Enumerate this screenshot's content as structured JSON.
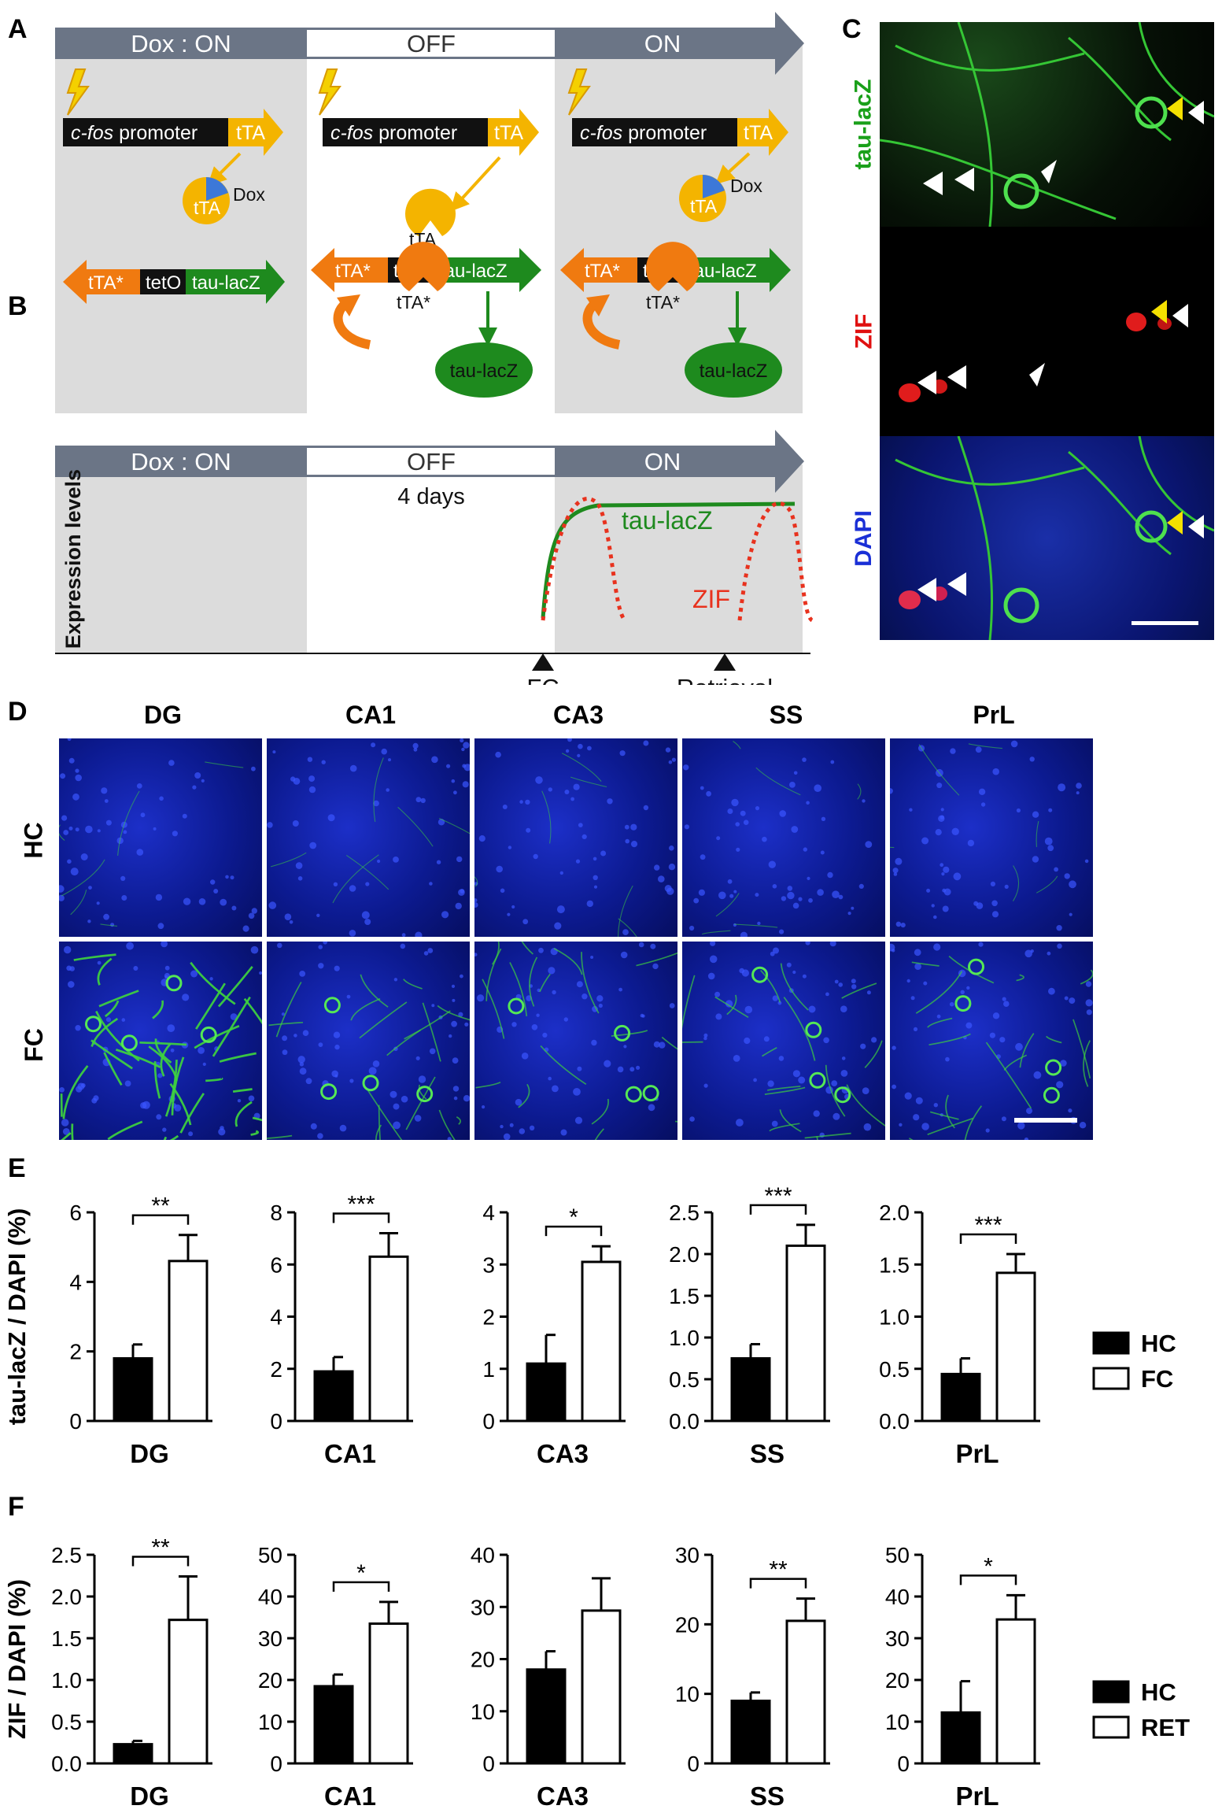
{
  "panel_labels": {
    "a": "A",
    "b": "B",
    "c": "C",
    "d": "D",
    "e": "E",
    "f": "F"
  },
  "panel_a": {
    "phases": [
      "Dox : ON",
      "OFF",
      "ON"
    ],
    "promoter_italic": "c-fos",
    "promoter_rest": " promoter",
    "tta": "tTA",
    "tta_star": "tTA*",
    "teto": "tetO",
    "taulacz": "tau-lacZ",
    "dox": "Dox"
  },
  "panel_b": {
    "phases": [
      "Dox : ON",
      "OFF",
      "ON"
    ],
    "duration": "4 days",
    "ylabel": "Expression levels",
    "curve_taulacz": "tau-lacZ",
    "curve_zif": "ZIF",
    "markers": [
      "FC",
      "Retrieval"
    ]
  },
  "panel_c": {
    "channels": [
      "tau-lacZ",
      "ZIF",
      "DAPI"
    ],
    "channel_colors": [
      "#1aa01a",
      "#e01010",
      "#1a2fd6"
    ]
  },
  "panel_d": {
    "regions": [
      "DG",
      "CA1",
      "CA3",
      "SS",
      "PrL"
    ],
    "rows": [
      "HC",
      "FC"
    ]
  },
  "colors": {
    "hc_bar": "#000000",
    "treated_bar": "#ffffff",
    "green": "#1e8a1e",
    "orange": "#f07a10",
    "yellow": "#f4b400",
    "grey_bg": "#dcdcdc",
    "arrow": "#6b7586",
    "zif_red": "#e8321e"
  },
  "chart_data": [
    {
      "type": "bar",
      "panel": "E",
      "xlabel": "DG",
      "ylabel": "tau-lacZ / DAPI (%)",
      "ylim": [
        0,
        6
      ],
      "yticks": [
        "0",
        "2",
        "4",
        "6"
      ],
      "categories": [
        "HC",
        "FC"
      ],
      "values": [
        1.8,
        4.6
      ],
      "errors": [
        0.4,
        0.75
      ],
      "sig": "**"
    },
    {
      "type": "bar",
      "panel": "E",
      "xlabel": "CA1",
      "ylim": [
        0,
        8
      ],
      "yticks": [
        "0",
        "2",
        "4",
        "6",
        "8"
      ],
      "categories": [
        "HC",
        "FC"
      ],
      "values": [
        1.9,
        6.3
      ],
      "errors": [
        0.55,
        0.9
      ],
      "sig": "***"
    },
    {
      "type": "bar",
      "panel": "E",
      "xlabel": "CA3",
      "ylim": [
        0,
        4
      ],
      "yticks": [
        "0",
        "1",
        "2",
        "3",
        "4"
      ],
      "categories": [
        "HC",
        "FC"
      ],
      "values": [
        1.1,
        3.05
      ],
      "errors": [
        0.55,
        0.3
      ],
      "sig": "*"
    },
    {
      "type": "bar",
      "panel": "E",
      "xlabel": "SS",
      "ylim": [
        0,
        2.5
      ],
      "yticks": [
        "0.0",
        "0.5",
        "1.0",
        "1.5",
        "2.0",
        "2.5"
      ],
      "categories": [
        "HC",
        "FC"
      ],
      "values": [
        0.75,
        2.1
      ],
      "errors": [
        0.17,
        0.25
      ],
      "sig": "***"
    },
    {
      "type": "bar",
      "panel": "E",
      "xlabel": "PrL",
      "ylim": [
        0,
        2
      ],
      "yticks": [
        "0.0",
        "0.5",
        "1.0",
        "1.5",
        "2.0"
      ],
      "categories": [
        "HC",
        "FC"
      ],
      "values": [
        0.45,
        1.42
      ],
      "errors": [
        0.15,
        0.18
      ],
      "sig": "***"
    },
    {
      "type": "bar",
      "panel": "F",
      "xlabel": "DG",
      "ylabel": "ZIF / DAPI (%)",
      "ylim": [
        0,
        2.5
      ],
      "yticks": [
        "0.0",
        "0.5",
        "1.0",
        "1.5",
        "2.0",
        "2.5"
      ],
      "categories": [
        "HC",
        "RET"
      ],
      "values": [
        0.23,
        1.72
      ],
      "errors": [
        0.04,
        0.52
      ],
      "sig": "**"
    },
    {
      "type": "bar",
      "panel": "F",
      "xlabel": "CA1",
      "ylim": [
        0,
        50
      ],
      "yticks": [
        "0",
        "10",
        "20",
        "30",
        "40",
        "50"
      ],
      "categories": [
        "HC",
        "RET"
      ],
      "values": [
        18.5,
        33.5
      ],
      "errors": [
        2.8,
        5.2
      ],
      "sig": "*"
    },
    {
      "type": "bar",
      "panel": "F",
      "xlabel": "CA3",
      "ylim": [
        0,
        40
      ],
      "yticks": [
        "0",
        "10",
        "20",
        "30",
        "40"
      ],
      "categories": [
        "HC",
        "RET"
      ],
      "values": [
        18,
        29.3
      ],
      "errors": [
        3.5,
        6.2
      ],
      "sig": ""
    },
    {
      "type": "bar",
      "panel": "F",
      "xlabel": "SS",
      "ylim": [
        0,
        30
      ],
      "yticks": [
        "0",
        "10",
        "20",
        "30"
      ],
      "categories": [
        "HC",
        "RET"
      ],
      "values": [
        9,
        20.5
      ],
      "errors": [
        1.2,
        3.2
      ],
      "sig": "**"
    },
    {
      "type": "bar",
      "panel": "F",
      "xlabel": "PrL",
      "ylim": [
        0,
        50
      ],
      "yticks": [
        "0",
        "10",
        "20",
        "30",
        "40",
        "50"
      ],
      "categories": [
        "HC",
        "RET"
      ],
      "values": [
        12.2,
        34.5
      ],
      "errors": [
        7.5,
        5.8
      ],
      "sig": "*"
    }
  ],
  "legend_e": [
    "HC",
    "FC"
  ],
  "legend_f": [
    "HC",
    "RET"
  ]
}
